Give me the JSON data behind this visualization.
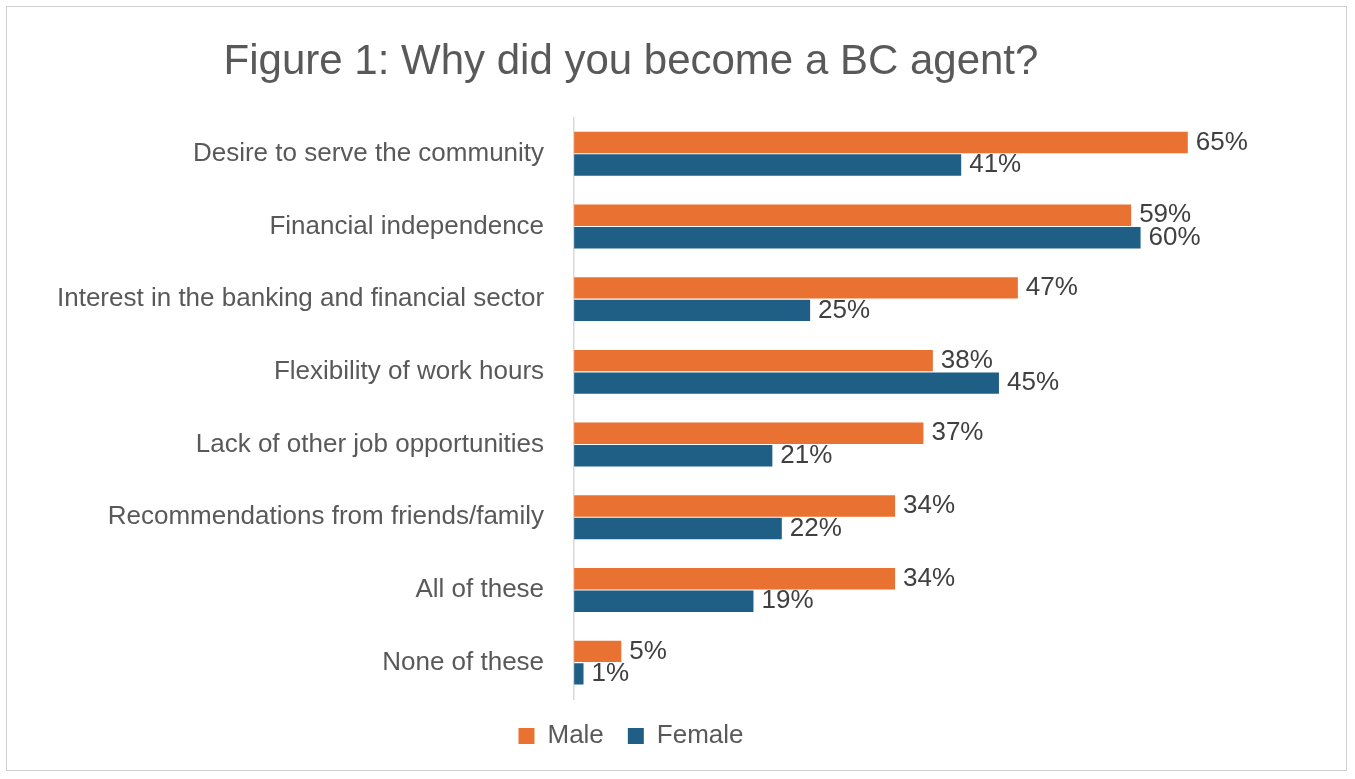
{
  "chart_data": {
    "type": "bar",
    "orientation": "horizontal",
    "title": "Figure 1: Why did you become a BC agent?",
    "categories": [
      "Desire to serve the community",
      "Financial independence",
      "Interest in the banking and financial sector",
      "Flexibility of work hours",
      "Lack of other job opportunities",
      "Recommendations from friends/family",
      "All of these",
      "None of these"
    ],
    "series": [
      {
        "name": "Male",
        "color": "#e97132",
        "values": [
          65,
          59,
          47,
          38,
          37,
          34,
          34,
          5
        ],
        "value_labels": [
          "65%",
          "59%",
          "47%",
          "38%",
          "37%",
          "34%",
          "34%",
          "5%"
        ]
      },
      {
        "name": "Female",
        "color": "#1f5f86",
        "values": [
          41,
          60,
          25,
          45,
          21,
          22,
          19,
          1
        ],
        "value_labels": [
          "41%",
          "60%",
          "25%",
          "45%",
          "21%",
          "22%",
          "19%",
          "1%"
        ]
      }
    ],
    "tick_labels": "y",
    "grid": false,
    "legend": "bottom"
  }
}
